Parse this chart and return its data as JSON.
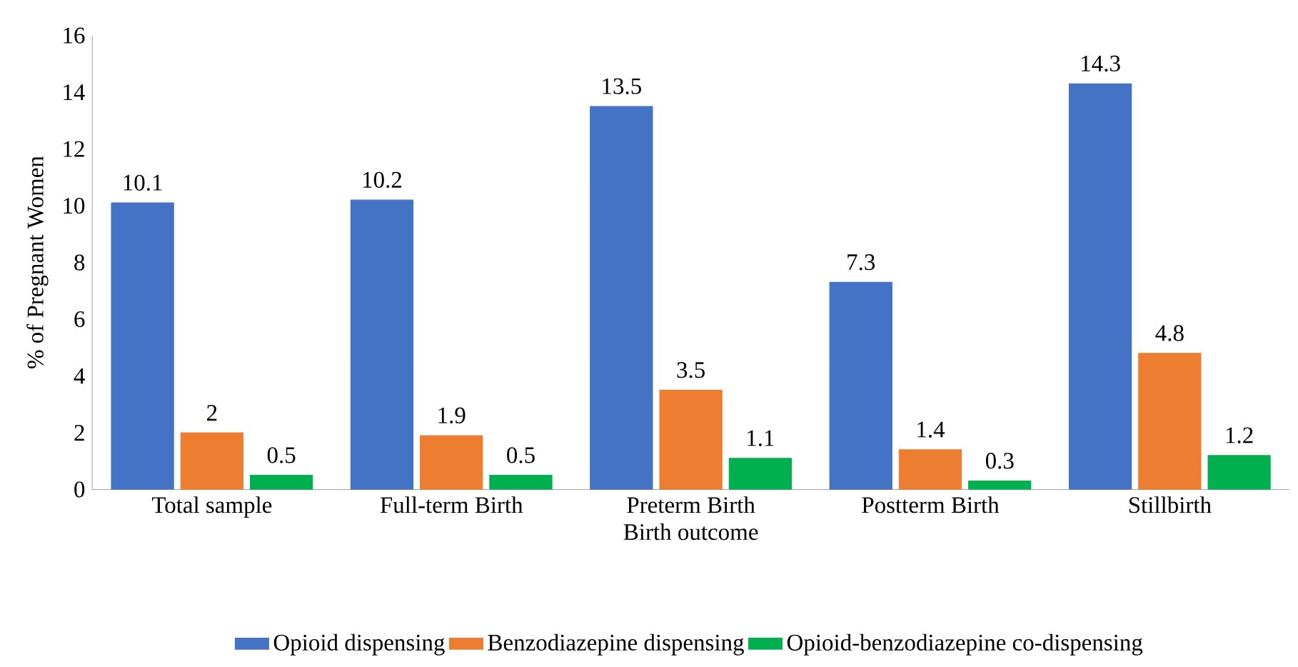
{
  "chart_data": {
    "type": "bar",
    "xlabel": "Birth outcome",
    "ylabel": "% of Pregnant Women",
    "categories": [
      "Total sample",
      "Full-term Birth",
      "Preterm Birth",
      "Postterm Birth",
      "Stillbirth"
    ],
    "series": [
      {
        "name": "Opioid dispensing",
        "color": "#4472c4",
        "values": [
          10.1,
          10.2,
          13.5,
          7.3,
          14.3
        ]
      },
      {
        "name": "Benzodiazepine dispensing",
        "color": "#ed7d31",
        "values": [
          2,
          1.9,
          3.5,
          1.4,
          4.8
        ]
      },
      {
        "name": "Opioid-benzodiazepine co-dispensing",
        "color": "#00b050",
        "values": [
          0.5,
          0.5,
          1.1,
          0.3,
          1.2
        ]
      }
    ],
    "ylim": [
      0,
      16
    ],
    "yticks": [
      0,
      2,
      4,
      6,
      8,
      10,
      12,
      14,
      16
    ],
    "data_labels": true,
    "legend": "bottom",
    "grid": false
  }
}
